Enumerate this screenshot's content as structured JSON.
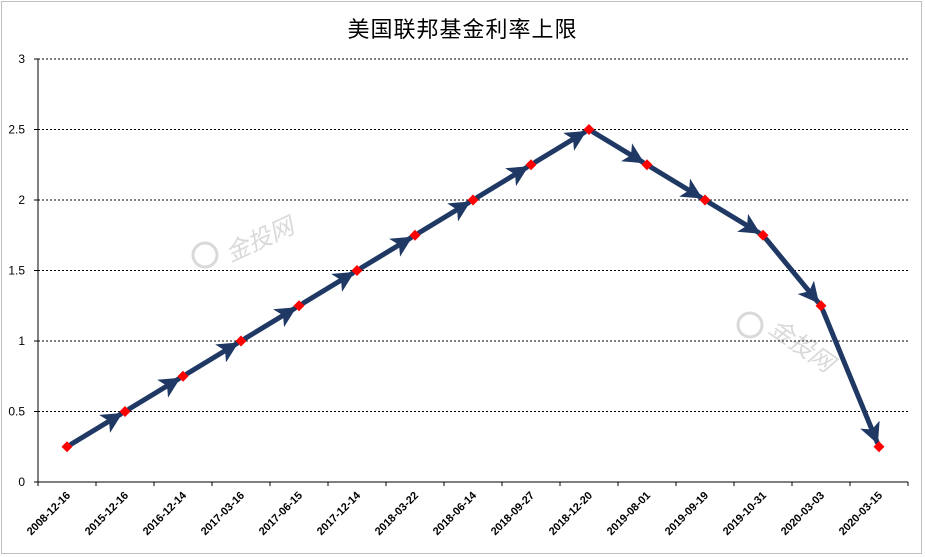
{
  "chart_data": {
    "type": "line",
    "title": "美国联邦基金利率上限",
    "xlabel": "",
    "ylabel": "",
    "categories": [
      "2008-12-16",
      "2015-12-16",
      "2016-12-14",
      "2017-03-16",
      "2017-06-15",
      "2017-12-14",
      "2018-03-22",
      "2018-06-14",
      "2018-09-27",
      "2018-12-20",
      "2019-08-01",
      "2019-09-19",
      "2019-10-31",
      "2020-03-03",
      "2020-03-15"
    ],
    "values": [
      0.25,
      0.5,
      0.75,
      1.0,
      1.25,
      1.5,
      1.75,
      2.0,
      2.25,
      2.5,
      2.25,
      2.0,
      1.75,
      1.25,
      0.25
    ],
    "ylim": [
      0,
      3
    ],
    "yticks": [
      "0",
      "0.5",
      "1",
      "1.5",
      "2",
      "2.5",
      "3"
    ],
    "grid": true,
    "legend": "none",
    "colors": {
      "line": "#1f3864",
      "marker": "#ff0000",
      "grid": "#000000"
    }
  },
  "watermark": "金投网"
}
